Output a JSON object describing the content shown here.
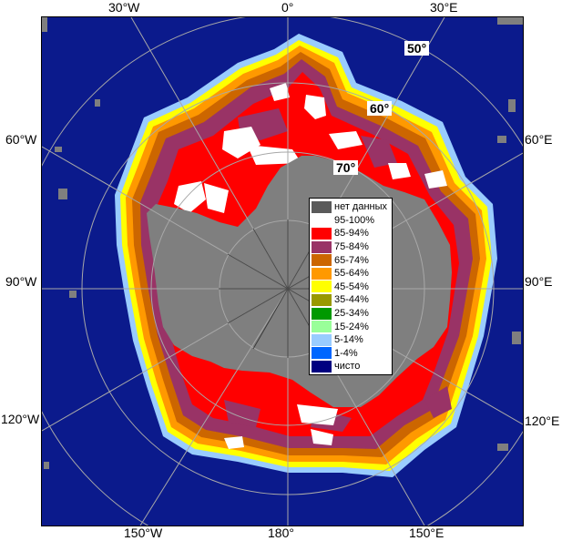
{
  "map": {
    "longitude_labels": {
      "top_30w": "30°W",
      "top_0": "0°",
      "top_30e": "30°E",
      "left_60w": "60°W",
      "left_90w": "90°W",
      "left_120w": "120°W",
      "right_60e": "60°E",
      "right_90e": "90°E",
      "right_120e": "120°E",
      "bottom_150w": "150°W",
      "bottom_180": "180°",
      "bottom_150e": "150°E"
    },
    "latitude_labels": {
      "lat_50": "50°",
      "lat_60": "60°",
      "lat_70": "70°"
    },
    "colors": {
      "open_water": "#0b1a8c",
      "land": "#7f7f7f",
      "graticule": "#a8a8a8"
    }
  },
  "legend": {
    "items": [
      {
        "label": "нет данных",
        "color": "#5a5a5a"
      },
      {
        "label": "95-100%",
        "color": "#ffffff"
      },
      {
        "label": "85-94%",
        "color": "#ff0000"
      },
      {
        "label": "75-84%",
        "color": "#993366"
      },
      {
        "label": "65-74%",
        "color": "#cc6600"
      },
      {
        "label": "55-64%",
        "color": "#ff9900"
      },
      {
        "label": "45-54%",
        "color": "#ffff00"
      },
      {
        "label": "35-44%",
        "color": "#999900"
      },
      {
        "label": "25-34%",
        "color": "#009900"
      },
      {
        "label": "15-24%",
        "color": "#99ff99"
      },
      {
        "label": "5-14%",
        "color": "#99ccff"
      },
      {
        "label": "1-4%",
        "color": "#0066ff"
      },
      {
        "label": "чисто",
        "color": "#000080"
      }
    ]
  }
}
